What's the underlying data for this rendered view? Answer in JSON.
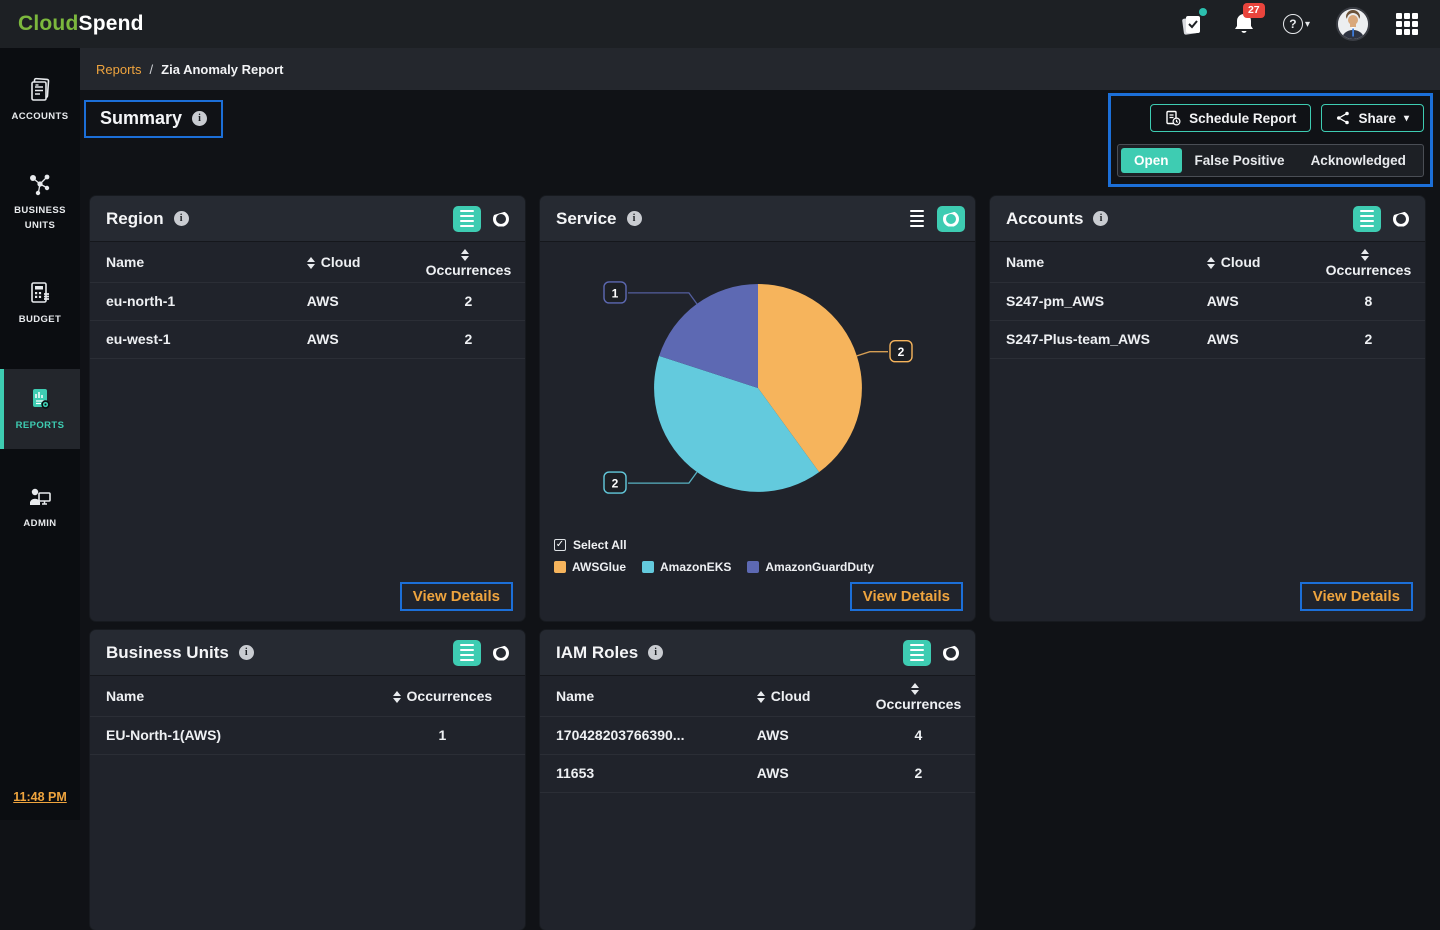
{
  "brand": {
    "cloud": "Cloud",
    "spend": "Spend"
  },
  "topbar": {
    "notification_count": "27",
    "icons": [
      "tasks-icon",
      "bell-icon",
      "help-icon",
      "avatar",
      "apps-grid-icon"
    ]
  },
  "breadcrumb": {
    "section": "Reports",
    "separator": "/",
    "current": "Zia Anomaly Report"
  },
  "sidebar": {
    "items": [
      {
        "id": "accounts",
        "label": "ACCOUNTS"
      },
      {
        "id": "business-units",
        "label": "BUSINESS UNITS"
      },
      {
        "id": "budget",
        "label": "BUDGET"
      },
      {
        "id": "reports",
        "label": "REPORTS",
        "active": true
      },
      {
        "id": "admin",
        "label": "ADMIN"
      }
    ],
    "time": "11:48 PM"
  },
  "page": {
    "title": "Summary"
  },
  "actions": {
    "schedule_report": "Schedule Report",
    "share": "Share"
  },
  "status_tabs": {
    "open": "Open",
    "false_positive": "False Positive",
    "acknowledged": "Acknowledged",
    "active": "Open"
  },
  "cards": {
    "region": {
      "title": "Region",
      "col_name": "Name",
      "col_cloud": "Cloud",
      "col_occurrences": "Occurrences",
      "rows": [
        {
          "name": "eu-north-1",
          "cloud": "AWS",
          "occurrences": "2"
        },
        {
          "name": "eu-west-1",
          "cloud": "AWS",
          "occurrences": "2"
        }
      ],
      "view_details": "View Details"
    },
    "service": {
      "title": "Service",
      "select_all": "Select All",
      "view_details": "View Details"
    },
    "accounts": {
      "title": "Accounts",
      "col_name": "Name",
      "col_cloud": "Cloud",
      "col_occurrences": "Occurrences",
      "rows": [
        {
          "name": "S247-pm_AWS",
          "cloud": "AWS",
          "occurrences": "8"
        },
        {
          "name": "S247-Plus-team_AWS",
          "cloud": "AWS",
          "occurrences": "2"
        }
      ],
      "view_details": "View Details"
    },
    "business_units": {
      "title": "Business Units",
      "col_name": "Name",
      "col_occurrences": "Occurrences",
      "rows": [
        {
          "name": "EU-North-1(AWS)",
          "occurrences": "1"
        }
      ]
    },
    "iam_roles": {
      "title": "IAM Roles",
      "col_name": "Name",
      "col_cloud": "Cloud",
      "col_occurrences": "Occurrences",
      "rows": [
        {
          "name": "170428203766390...",
          "cloud": "AWS",
          "occurrences": "4"
        },
        {
          "name": "11653",
          "cloud": "AWS",
          "occurrences": "2"
        }
      ]
    }
  },
  "chart_data": {
    "type": "pie",
    "title": "Service",
    "slices": [
      {
        "label": "AWSGlue",
        "value": 2,
        "color": "#f6b45c"
      },
      {
        "label": "AmazonEKS",
        "value": 2,
        "color": "#63cadd"
      },
      {
        "label": "AmazonGuardDuty",
        "value": 1,
        "color": "#5d69b3"
      }
    ],
    "start_angle_deg": 0,
    "direction": "clockwise",
    "data_labels": "values",
    "legend_position": "bottom"
  },
  "colors": {
    "accent_teal": "#3eccb2",
    "accent_orange": "#efa43e",
    "annotation_blue": "#1c6fd8",
    "badge_red": "#e9443c",
    "brand_green": "#7cb83d"
  }
}
